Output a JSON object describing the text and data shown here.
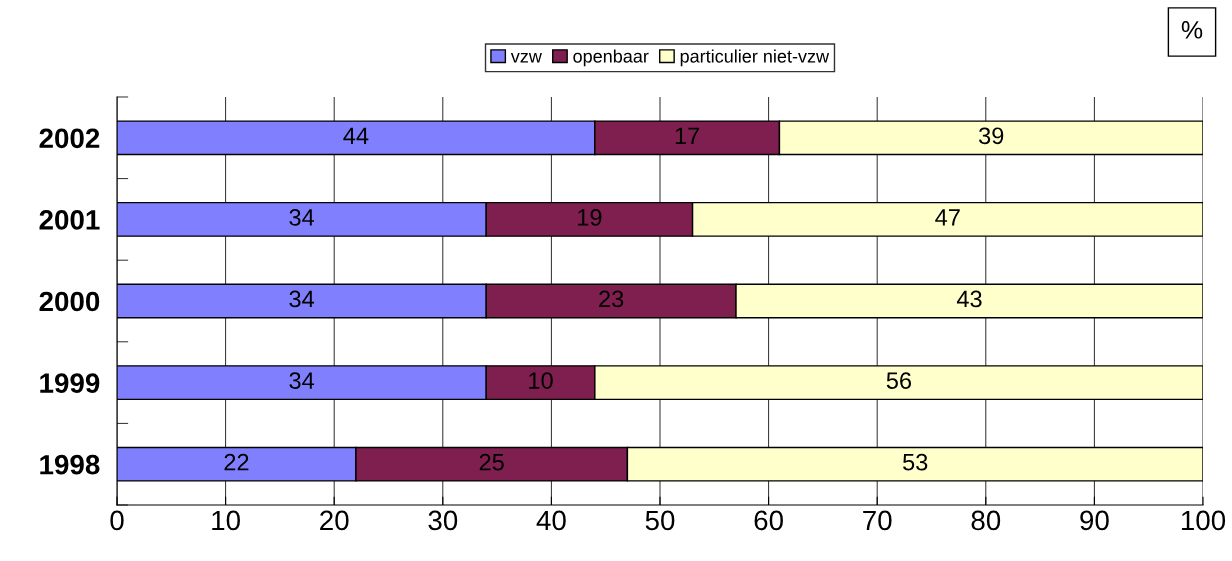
{
  "chart_data": {
    "type": "bar",
    "orientation": "horizontal",
    "stacked": true,
    "categories": [
      "2002",
      "2001",
      "2000",
      "1999",
      "1998"
    ],
    "series": [
      {
        "name": "vzw",
        "color": "#8080ff",
        "values": [
          44,
          34,
          34,
          34,
          22
        ]
      },
      {
        "name": "openbaar",
        "color": "#7f1f4f",
        "values": [
          17,
          19,
          23,
          10,
          25
        ]
      },
      {
        "name": "particulier niet-vzw",
        "color": "#ffffcc",
        "values": [
          39,
          47,
          43,
          56,
          53
        ]
      }
    ],
    "xlim": [
      0,
      100
    ],
    "xticks": [
      0,
      10,
      20,
      30,
      40,
      50,
      60,
      70,
      80,
      90,
      100
    ],
    "grid": "x",
    "legend": "top",
    "data_labels": true,
    "annotations": [
      "%"
    ]
  }
}
